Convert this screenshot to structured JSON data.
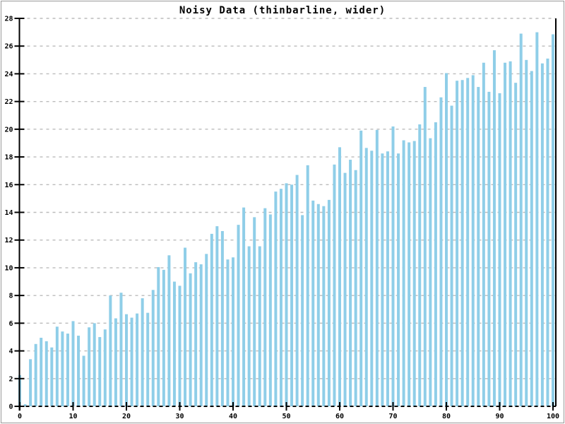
{
  "window": {
    "title": "Noisy Data (thinbarline, wider)"
  },
  "chart_data": {
    "type": "bar",
    "title": "Noisy Data (thinbarline, wider)",
    "xlabel": "",
    "ylabel": "",
    "xlim": [
      0,
      100
    ],
    "ylim": [
      0,
      28
    ],
    "x_ticks": [
      0,
      10,
      20,
      30,
      40,
      50,
      60,
      70,
      80,
      90,
      100
    ],
    "y_ticks": [
      0,
      2,
      4,
      6,
      8,
      10,
      12,
      14,
      16,
      18,
      20,
      22,
      24,
      26,
      28
    ],
    "grid": "horizontal-dashed",
    "legend_position": "none",
    "bar_color": "#8FCEE8",
    "axis_color": "#000000",
    "grid_color": "#BBBBBB",
    "frame_color": "#999999",
    "x": [
      0,
      1,
      2,
      3,
      4,
      5,
      6,
      7,
      8,
      9,
      10,
      11,
      12,
      13,
      14,
      15,
      16,
      17,
      18,
      19,
      20,
      21,
      22,
      23,
      24,
      25,
      26,
      27,
      28,
      29,
      30,
      31,
      32,
      33,
      34,
      35,
      36,
      37,
      38,
      39,
      40,
      41,
      42,
      43,
      44,
      45,
      46,
      47,
      48,
      49,
      50,
      51,
      52,
      53,
      54,
      55,
      56,
      57,
      58,
      59,
      60,
      61,
      62,
      63,
      64,
      65,
      66,
      67,
      68,
      69,
      70,
      71,
      72,
      73,
      74,
      75,
      76,
      77,
      78,
      79,
      80,
      81,
      82,
      83,
      84,
      85,
      86,
      87,
      88,
      89,
      90,
      91,
      92,
      93,
      94,
      95,
      96,
      97,
      98,
      99,
      100
    ],
    "values": [
      2.25,
      0.15,
      3.4,
      4.5,
      4.95,
      4.7,
      4.25,
      5.75,
      5.4,
      5.25,
      6.15,
      5.1,
      3.65,
      5.7,
      6.0,
      5.0,
      5.55,
      8.0,
      6.35,
      8.2,
      6.65,
      6.4,
      6.7,
      7.8,
      6.75,
      8.4,
      10.05,
      9.85,
      10.9,
      9.0,
      8.7,
      11.45,
      9.6,
      10.4,
      10.25,
      11.0,
      12.45,
      13.0,
      12.65,
      10.6,
      10.75,
      13.1,
      14.35,
      11.55,
      13.65,
      11.55,
      14.3,
      13.85,
      15.5,
      15.7,
      16.1,
      16.0,
      16.7,
      13.8,
      17.4,
      14.85,
      14.6,
      14.45,
      14.9,
      17.45,
      18.7,
      16.85,
      17.8,
      17.05,
      19.9,
      18.65,
      18.45,
      19.95,
      18.25,
      18.4,
      20.2,
      18.25,
      19.2,
      19.05,
      19.15,
      20.35,
      23.05,
      19.35,
      20.5,
      22.3,
      24.05,
      21.7,
      23.5,
      23.55,
      23.7,
      23.9,
      23.05,
      24.8,
      22.7,
      25.7,
      22.6,
      24.8,
      24.9,
      23.35,
      26.9,
      25.0,
      24.2,
      27.0,
      24.75,
      25.1,
      26.85
    ]
  }
}
